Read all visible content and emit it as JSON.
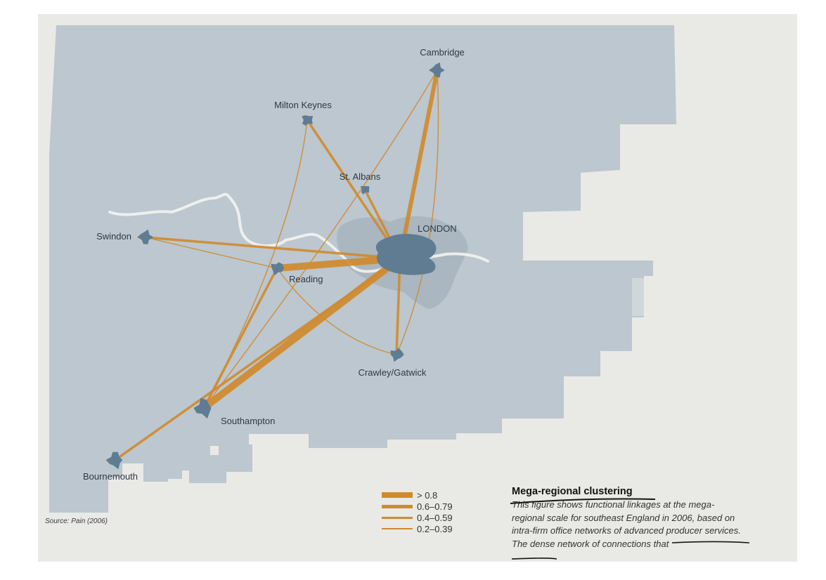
{
  "places": [
    {
      "id": "cambridge",
      "name": "Cambridge"
    },
    {
      "id": "milton_keynes",
      "name": "Milton Keynes"
    },
    {
      "id": "st_albans",
      "name": "St. Albans"
    },
    {
      "id": "london",
      "name": "LONDON"
    },
    {
      "id": "swindon",
      "name": "Swindon"
    },
    {
      "id": "reading",
      "name": "Reading"
    },
    {
      "id": "crawley_gatwick",
      "name": "Crawley/Gatwick"
    },
    {
      "id": "southampton",
      "name": "Southampton"
    },
    {
      "id": "bournemouth",
      "name": "Bournemouth"
    }
  ],
  "linkages": [
    {
      "from": "london",
      "to": "reading",
      "class": "> 0.8"
    },
    {
      "from": "london",
      "to": "southampton",
      "class": "> 0.8"
    },
    {
      "from": "london",
      "to": "cambridge",
      "class": "0.6–0.79"
    },
    {
      "from": "london",
      "to": "bournemouth",
      "class": "0.4–0.59"
    },
    {
      "from": "london",
      "to": "swindon",
      "class": "0.4–0.59"
    },
    {
      "from": "london",
      "to": "st_albans",
      "class": "0.4–0.59"
    },
    {
      "from": "london",
      "to": "milton_keynes",
      "class": "0.4–0.59"
    },
    {
      "from": "london",
      "to": "crawley_gatwick",
      "class": "0.4–0.59"
    },
    {
      "from": "reading",
      "to": "southampton",
      "class": "0.4–0.59"
    },
    {
      "from": "cambridge",
      "to": "southampton",
      "class": "0.2–0.39"
    },
    {
      "from": "cambridge",
      "to": "crawley_gatwick",
      "class": "0.2–0.39"
    },
    {
      "from": "milton_keynes",
      "to": "southampton",
      "class": "0.2–0.39"
    },
    {
      "from": "swindon",
      "to": "reading",
      "class": "0.2–0.39"
    },
    {
      "from": "reading",
      "to": "crawley_gatwick",
      "class": "0.2–0.39"
    }
  ],
  "legend": {
    "items": [
      {
        "label": "> 0.8"
      },
      {
        "label": "0.6–0.79"
      },
      {
        "label": "0.4–0.59"
      },
      {
        "label": "0.2–0.39"
      }
    ]
  },
  "source": "Source: Pain (2006)",
  "caption": {
    "title": "Mega-regional clustering",
    "body": "This figure shows functional linkages at the mega-regional scale for southeast England in 2006, based on intra-firm office networks of advanced producer services. The dense network of connections that"
  },
  "colors": {
    "page": "#e9e9e6",
    "land": "#bcc7cf",
    "urban": "#5f7c93",
    "greater_london": "#aab6c0",
    "linkage": "#d08a2e",
    "river": "#f3f3f1"
  }
}
